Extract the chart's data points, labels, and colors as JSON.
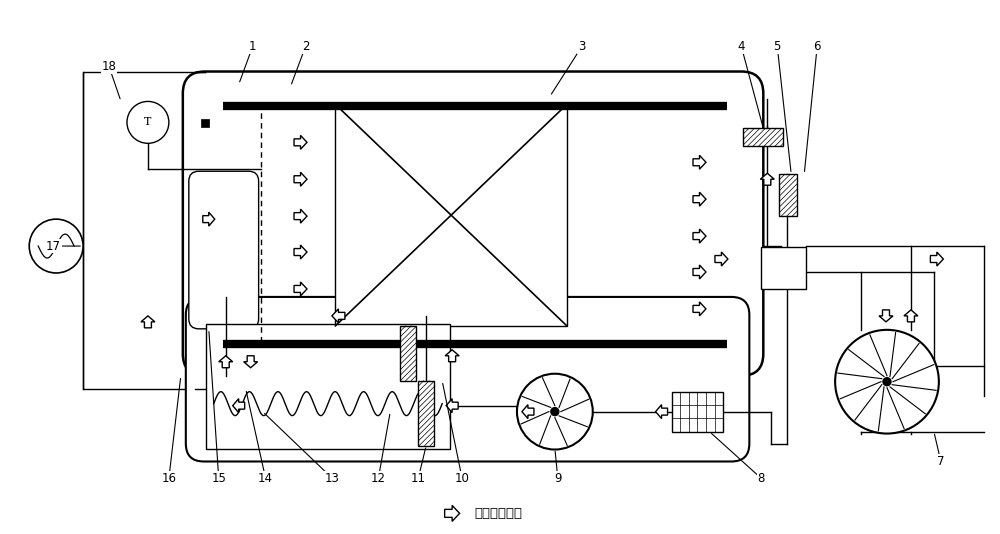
{
  "bg_color": "#ffffff",
  "line_color": "#000000",
  "fig_width": 10.0,
  "fig_height": 5.34,
  "caption": "⇒表示气流方向",
  "dpi": 100
}
